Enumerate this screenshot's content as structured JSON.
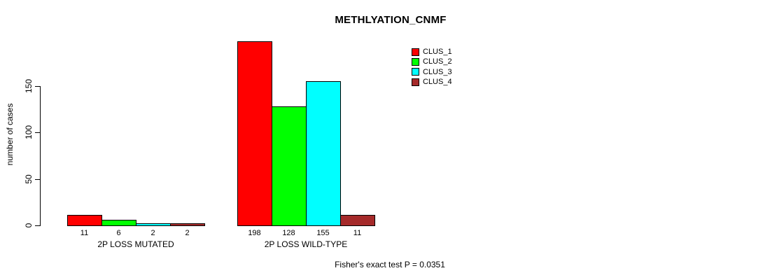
{
  "chart_data": {
    "type": "bar",
    "title": "METHLYATION_CNMF",
    "ylabel": "number of cases",
    "xlabel": "",
    "categories": [
      "2P LOSS MUTATED",
      "2P LOSS WILD-TYPE"
    ],
    "series": [
      {
        "name": "CLUS_1",
        "color": "#ff0000",
        "values": [
          11,
          198
        ]
      },
      {
        "name": "CLUS_2",
        "color": "#00ff00",
        "values": [
          6,
          128
        ]
      },
      {
        "name": "CLUS_3",
        "color": "#00ffff",
        "values": [
          2,
          155
        ]
      },
      {
        "name": "CLUS_4",
        "color": "#a52a2a",
        "values": [
          2,
          11
        ]
      }
    ],
    "yticks": [
      0,
      50,
      100,
      150
    ],
    "ylim": [
      0,
      150
    ],
    "grid": false,
    "legend_position": "top-right",
    "bar_value_labels_shown": true,
    "annotation": "Fisher's exact test P = 0.0351"
  }
}
